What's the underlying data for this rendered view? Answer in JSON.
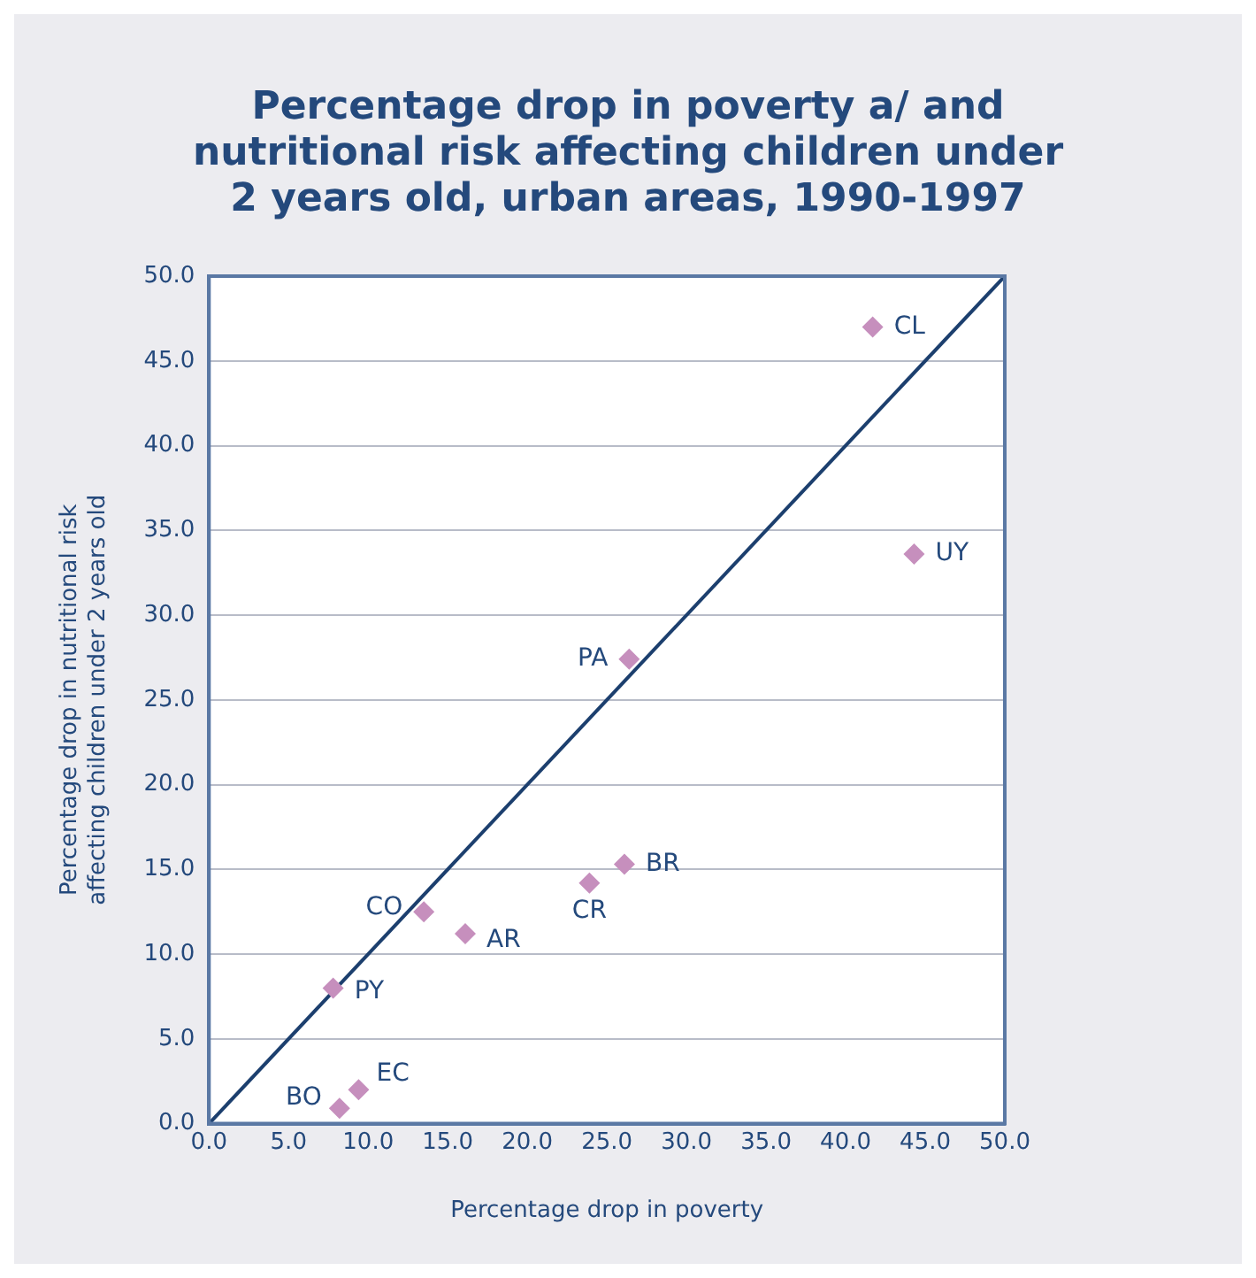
{
  "chart_data": {
    "type": "scatter",
    "title": "Percentage drop in poverty a/ and nutritional risk affecting children under 2 years old, urban areas, 1990-1997",
    "xlabel": "Percentage drop in poverty",
    "ylabel": "Percentage drop in nutritional risk affecting children under 2 years old",
    "series": [
      {
        "color": "#c68fbd",
        "marker": "diamond",
        "x": [
          41.7,
          44.3,
          26.4,
          26.1,
          23.9,
          13.5,
          16.1,
          7.8,
          9.4,
          8.2
        ],
        "values": [
          47.0,
          33.6,
          27.4,
          15.3,
          14.2,
          12.5,
          11.2,
          8.0,
          2.0,
          0.9
        ]
      },
      {
        "type": "line",
        "color": "#1c3f6e",
        "marker": "none",
        "x": [
          0,
          50
        ],
        "values": [
          0,
          50
        ]
      }
    ],
    "annotations": [
      {
        "text": "CL",
        "x": 41.7,
        "y": 47.0
      },
      {
        "text": "UY",
        "x": 44.3,
        "y": 33.6
      },
      {
        "text": "PA",
        "x": 26.4,
        "y": 27.4
      },
      {
        "text": "BR",
        "x": 26.1,
        "y": 15.3
      },
      {
        "text": "CR",
        "x": 23.9,
        "y": 14.2
      },
      {
        "text": "CO",
        "x": 13.5,
        "y": 12.5
      },
      {
        "text": "AR",
        "x": 16.1,
        "y": 11.2
      },
      {
        "text": "PY",
        "x": 7.8,
        "y": 8.0
      },
      {
        "text": "EC",
        "x": 9.4,
        "y": 2.0
      },
      {
        "text": "BO",
        "x": 8.2,
        "y": 0.9
      }
    ],
    "xlim": [
      0,
      50
    ],
    "ylim": [
      0,
      50
    ],
    "xticks": [
      {
        "value": 0,
        "label": "0.0"
      },
      {
        "value": 5,
        "label": "5.0"
      },
      {
        "value": 10,
        "label": "10.0"
      },
      {
        "value": 15,
        "label": "15.0"
      },
      {
        "value": 20,
        "label": "20.0"
      },
      {
        "value": 25,
        "label": "25.0"
      },
      {
        "value": 30,
        "label": "30.0"
      },
      {
        "value": 35,
        "label": "35.0"
      },
      {
        "value": 40,
        "label": "40.0"
      },
      {
        "value": 45,
        "label": "45.0"
      },
      {
        "value": 50,
        "label": "50.0"
      }
    ],
    "yticks": [
      {
        "value": 0,
        "label": "0.0"
      },
      {
        "value": 5,
        "label": "5.0"
      },
      {
        "value": 10,
        "label": "10.0"
      },
      {
        "value": 15,
        "label": "15.0"
      },
      {
        "value": 20,
        "label": "20.0"
      },
      {
        "value": 25,
        "label": "25.0"
      },
      {
        "value": 30,
        "label": "30.0"
      },
      {
        "value": 35,
        "label": "35.0"
      },
      {
        "value": 40,
        "label": "40.0"
      },
      {
        "value": 45,
        "label": "45.0"
      },
      {
        "value": 50,
        "label": "50.0"
      }
    ],
    "grid": "y",
    "legend": false
  }
}
